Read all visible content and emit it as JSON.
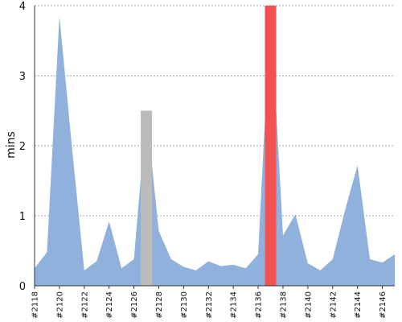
{
  "chart_data": {
    "type": "area",
    "ylabel": "mins",
    "ylim": [
      0,
      4
    ],
    "yticks": [
      "0",
      "1",
      "2",
      "3",
      "4"
    ],
    "xlim": [
      2118,
      2147
    ],
    "grid": "horizontal-dashed",
    "x": [
      2118,
      2119,
      2120,
      2121,
      2122,
      2123,
      2124,
      2125,
      2126,
      2127,
      2128,
      2129,
      2130,
      2131,
      2132,
      2133,
      2134,
      2135,
      2136,
      2137,
      2138,
      2139,
      2140,
      2141,
      2142,
      2143,
      2144,
      2145,
      2146,
      2147
    ],
    "values": [
      0.25,
      0.48,
      3.85,
      2.0,
      0.22,
      0.35,
      0.92,
      0.25,
      0.38,
      2.5,
      0.78,
      0.38,
      0.27,
      0.22,
      0.35,
      0.28,
      0.3,
      0.25,
      0.45,
      4.0,
      0.72,
      1.02,
      0.32,
      0.22,
      0.38,
      1.08,
      1.72,
      0.38,
      0.33,
      0.45
    ],
    "xtick_labels": [
      "#2118",
      "#2120",
      "#2122",
      "#2124",
      "#2126",
      "#2128",
      "#2130",
      "#2132",
      "#2134",
      "#2136",
      "#2138",
      "#2140",
      "#2142",
      "#2144",
      "#2146"
    ],
    "highlights": [
      {
        "x": 2127,
        "value": 2.5,
        "color": "#bbbbbb"
      },
      {
        "x": 2137,
        "value": 4.0,
        "color": "#f05252"
      }
    ],
    "series_color": "#8fb1dc"
  }
}
